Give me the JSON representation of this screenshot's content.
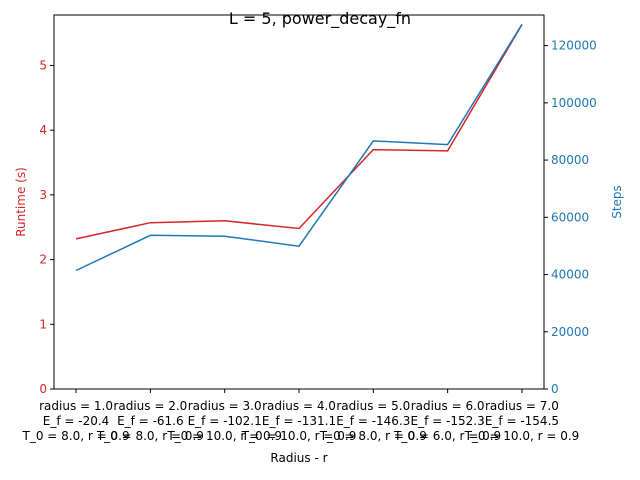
{
  "chart_data": {
    "type": "line",
    "title": "L = 5, power_decay_fn",
    "xlabel": "Radius - r",
    "ylabel_left": "Runtime (s)",
    "ylabel_right": "Steps",
    "categories": [
      [
        "radius = 1.0",
        "E_f = -20.4",
        "T_0 = 8.0, r = 0.9"
      ],
      [
        "radius = 2.0",
        "E_f = -61.6",
        "T_0 = 8.0, r = 0.9"
      ],
      [
        "radius = 3.0",
        "E_f = -102.1",
        "T_0 = 10.0, r = 0.9"
      ],
      [
        "radius = 4.0",
        "E_f = -131.1",
        "T_0 = 10.0, r = 0.9"
      ],
      [
        "radius = 5.0",
        "E_f = -146.3",
        "T_0 = 8.0, r = 0.9"
      ],
      [
        "radius = 6.0",
        "E_f = -152.3",
        "T_0 = 6.0, r = 0.9"
      ],
      [
        "radius = 7.0",
        "E_f = -154.5",
        "T_0 = 10.0, r = 0.9"
      ]
    ],
    "series": [
      {
        "axis": "left",
        "color": "#d62728",
        "values": [
          2.32,
          2.57,
          2.6,
          2.48,
          3.7,
          3.68,
          5.63
        ]
      },
      {
        "axis": "right",
        "color": "#1f77b4",
        "values": [
          41400,
          53700,
          53400,
          49900,
          86700,
          85400,
          127400
        ]
      }
    ],
    "ylim_left": [
      0,
      5.78
    ],
    "ylim_right": [
      0,
      130700
    ],
    "yticks_left": [
      "0",
      "1",
      "2",
      "3",
      "4",
      "5"
    ],
    "yticks_right": [
      "0",
      "20000",
      "40000",
      "60000",
      "80000",
      "100000",
      "120000"
    ],
    "grid": false,
    "legend": "none"
  }
}
